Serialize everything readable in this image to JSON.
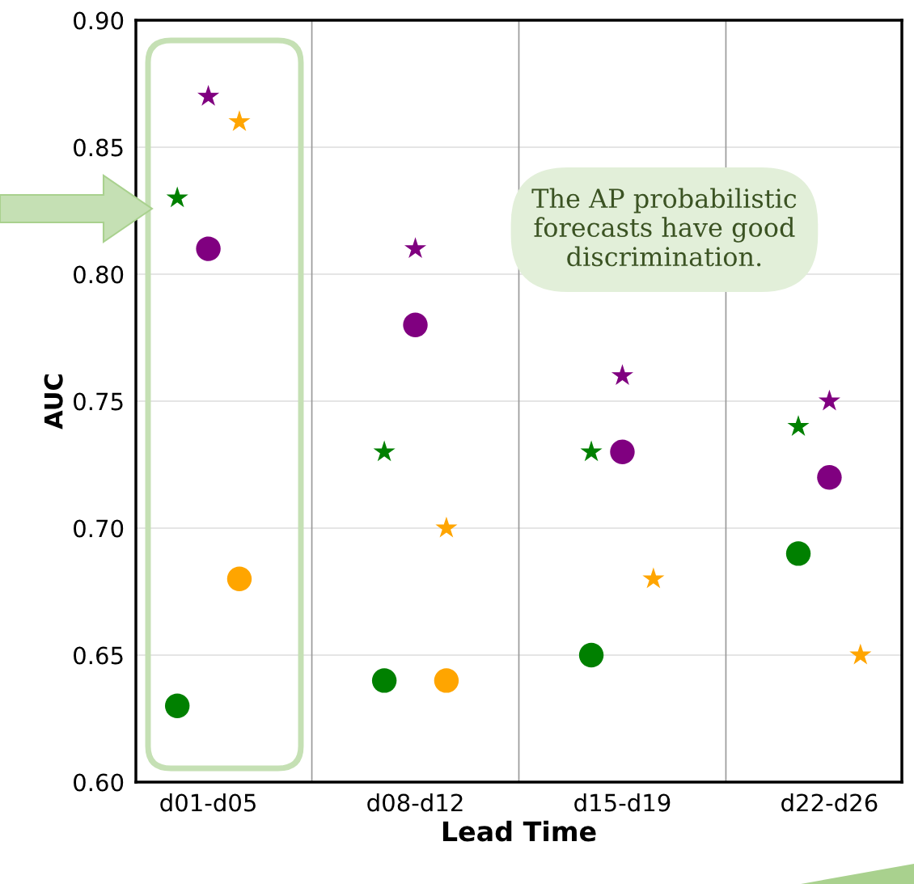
{
  "chart_data": {
    "type": "scatter",
    "xlabel": "Lead Time",
    "ylabel": "AUC",
    "annotations": [
      "The AP probabilistic\nforecasts have good\ndiscrimination."
    ],
    "categories": [
      "d01-d05",
      "d08-d12",
      "d15-d19",
      "d22-d26"
    ],
    "ylim": [
      0.6,
      0.9
    ],
    "yticks": [
      {
        "value": 0.6,
        "label": "0.60"
      },
      0.65,
      {
        "value": 0.7,
        "label": "0.70"
      },
      0.75,
      {
        "value": 0.8,
        "label": "0.80"
      },
      0.85,
      {
        "value": 0.9,
        "label": "0.90"
      }
    ],
    "grid": true,
    "series": [
      {
        "color": "#008000",
        "marker": "circle",
        "values": [
          0.63,
          0.64,
          0.65,
          0.69
        ]
      },
      {
        "color": "#008000",
        "marker": "star",
        "values": [
          0.83,
          0.73,
          0.73,
          0.74
        ]
      },
      {
        "color": "#800080",
        "marker": "circle",
        "values": [
          0.81,
          0.78,
          0.73,
          0.72
        ]
      },
      {
        "color": "#800080",
        "marker": "star",
        "values": [
          0.87,
          0.81,
          0.76,
          0.75
        ]
      },
      {
        "color": "#ffa500",
        "marker": "circle",
        "values": [
          0.68,
          0.64,
          null,
          null
        ]
      },
      {
        "color": "#ffa500",
        "marker": "star",
        "values": [
          0.86,
          0.7,
          0.68,
          0.65
        ]
      }
    ]
  }
}
